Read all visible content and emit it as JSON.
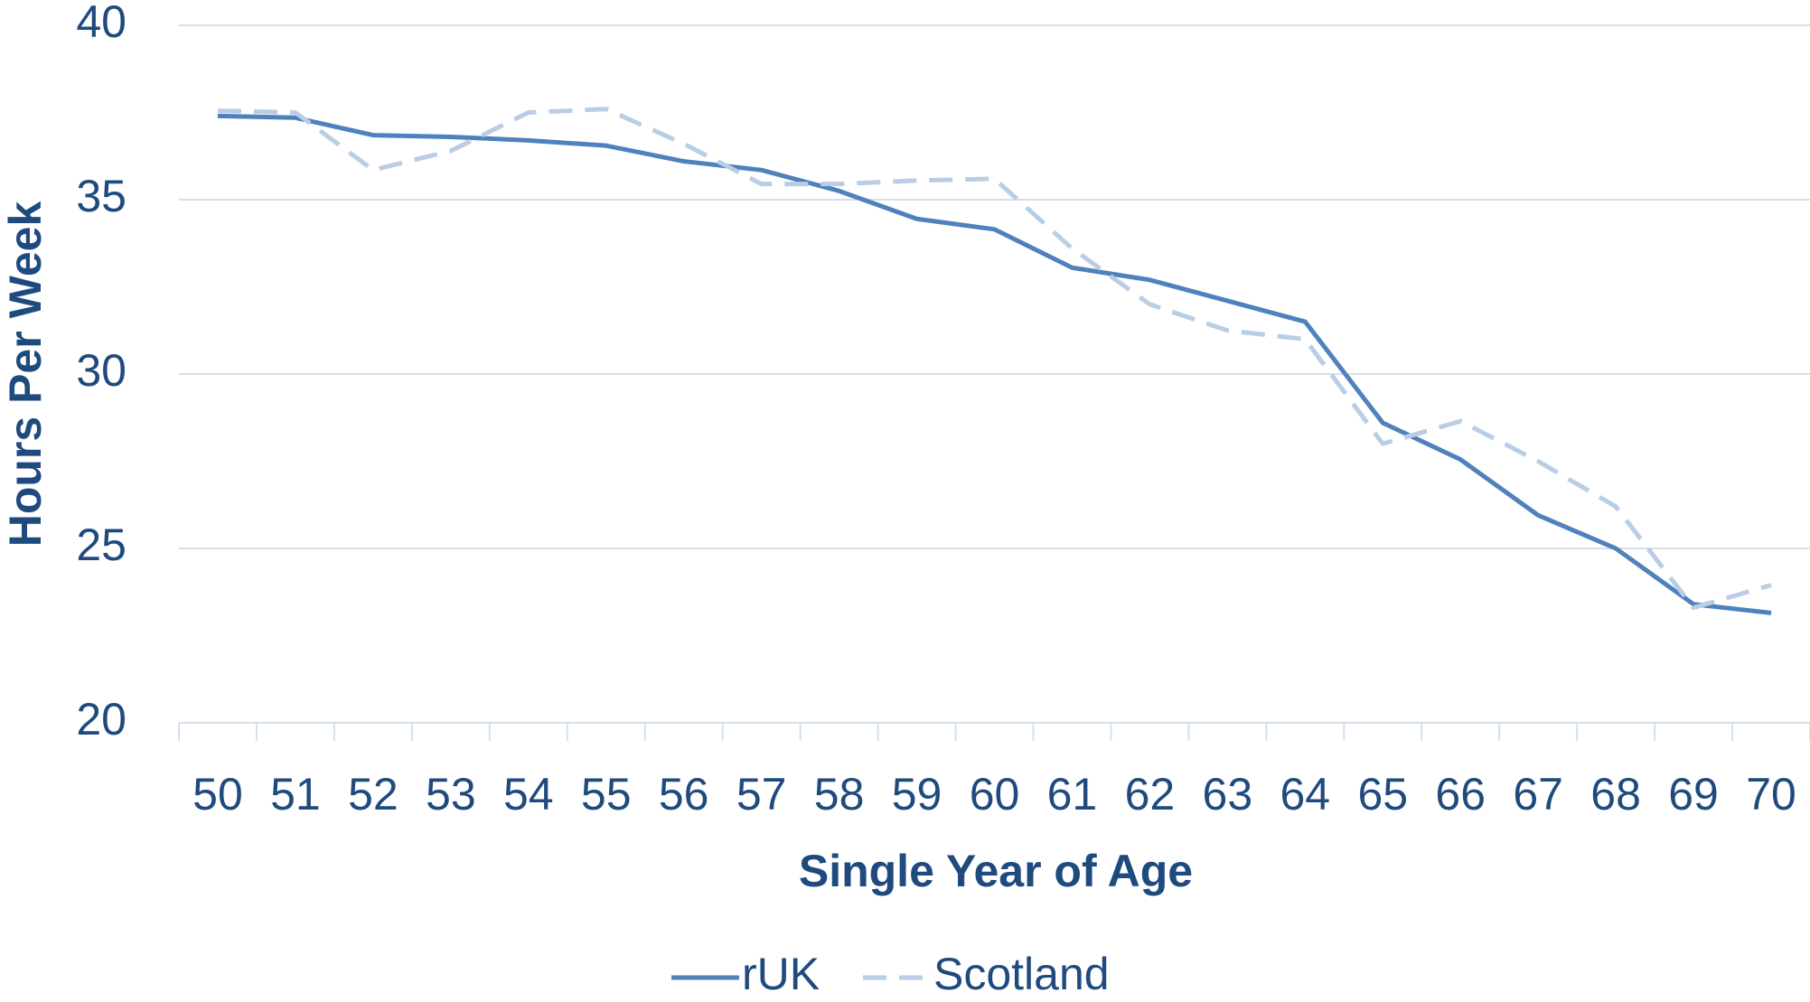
{
  "chart_data": {
    "type": "line",
    "x_label": "Single Year of Age",
    "y_label": "Hours Per Week",
    "categories": [
      "50",
      "51",
      "52",
      "53",
      "54",
      "55",
      "56",
      "57",
      "58",
      "59",
      "60",
      "61",
      "62",
      "63",
      "64",
      "65",
      "66",
      "67",
      "68",
      "69",
      "70"
    ],
    "series": [
      {
        "name": "rUK",
        "color": "#4f81bd",
        "dash": false,
        "values": [
          37.4,
          37.35,
          36.85,
          36.8,
          36.7,
          36.55,
          36.1,
          35.85,
          35.25,
          34.45,
          34.15,
          33.05,
          32.7,
          32.1,
          31.5,
          28.6,
          27.55,
          25.95,
          25.0,
          23.4,
          23.15
        ]
      },
      {
        "name": "Scotland",
        "color": "#b9cde5",
        "dash": true,
        "values": [
          37.55,
          37.5,
          35.85,
          36.4,
          37.5,
          37.6,
          36.6,
          35.45,
          35.45,
          35.55,
          35.6,
          33.6,
          32.0,
          31.25,
          31.0,
          28.0,
          28.65,
          27.5,
          26.2,
          23.3,
          23.95
        ]
      }
    ],
    "ylim": [
      20,
      40
    ],
    "yticks": [
      20,
      25,
      30,
      35,
      40
    ],
    "grid": true,
    "legend": "bottom"
  }
}
